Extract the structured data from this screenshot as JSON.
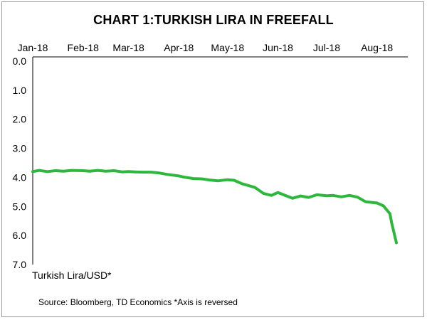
{
  "chart_data": {
    "type": "line",
    "title": "CHART 1:TURKISH LIRA IN FREEFALL",
    "xlabel": "",
    "ylabel": "Turkish Lira/USD*",
    "note": "Source: Bloomberg, TD Economics  *Axis is reversed",
    "x_tick_labels": [
      "Jan-18",
      "Feb-18",
      "Mar-18",
      "Apr-18",
      "May-18",
      "Jun-18",
      "Jul-18",
      "Aug-18"
    ],
    "y_tick_labels": [
      "0.0",
      "1.0",
      "2.0",
      "3.0",
      "4.0",
      "5.0",
      "6.0",
      "7.0"
    ],
    "y_ticks": [
      0,
      1,
      2,
      3,
      4,
      5,
      6,
      7
    ],
    "ylim": [
      0,
      7
    ],
    "xlim": [
      "2018-01-01",
      "2018-08-20"
    ],
    "y_axis_reversed": true,
    "x_axis_position": "top",
    "grid": false,
    "legend": "none",
    "series": [
      {
        "color": "#2db83d",
        "x": [
          "2018-01-01",
          "2018-01-05",
          "2018-01-10",
          "2018-01-15",
          "2018-01-20",
          "2018-01-25",
          "2018-02-01",
          "2018-02-05",
          "2018-02-10",
          "2018-02-15",
          "2018-02-20",
          "2018-02-25",
          "2018-03-01",
          "2018-03-05",
          "2018-03-10",
          "2018-03-15",
          "2018-03-20",
          "2018-03-25",
          "2018-04-01",
          "2018-04-05",
          "2018-04-10",
          "2018-04-15",
          "2018-04-20",
          "2018-04-25",
          "2018-05-01",
          "2018-05-05",
          "2018-05-10",
          "2018-05-15",
          "2018-05-18",
          "2018-05-23",
          "2018-05-28",
          "2018-06-01",
          "2018-06-05",
          "2018-06-10",
          "2018-06-15",
          "2018-06-20",
          "2018-06-25",
          "2018-07-01",
          "2018-07-05",
          "2018-07-10",
          "2018-07-15",
          "2018-07-20",
          "2018-07-25",
          "2018-08-01",
          "2018-08-05",
          "2018-08-09",
          "2018-08-10",
          "2018-08-13"
        ],
        "values": [
          3.8,
          3.76,
          3.8,
          3.77,
          3.79,
          3.76,
          3.77,
          3.79,
          3.76,
          3.79,
          3.77,
          3.81,
          3.8,
          3.81,
          3.82,
          3.82,
          3.85,
          3.9,
          3.95,
          4.0,
          4.04,
          4.05,
          4.09,
          4.12,
          4.08,
          4.1,
          4.22,
          4.3,
          4.35,
          4.55,
          4.62,
          4.52,
          4.61,
          4.72,
          4.64,
          4.69,
          4.6,
          4.63,
          4.62,
          4.67,
          4.62,
          4.68,
          4.84,
          4.88,
          4.98,
          5.25,
          5.55,
          6.25
        ]
      }
    ]
  }
}
